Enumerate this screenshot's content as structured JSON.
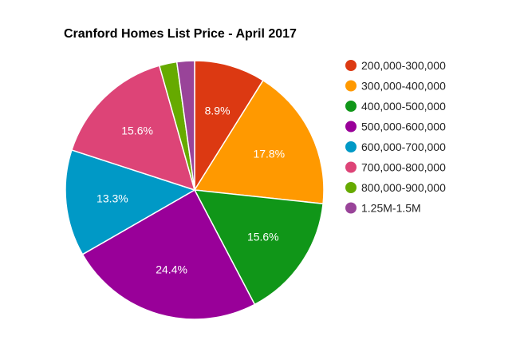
{
  "chart_data": {
    "type": "pie",
    "title": "Cranford Homes List Price - April 2017",
    "legend_position": "right",
    "slices": [
      {
        "label": "200,000-300,000",
        "value": 8.9,
        "display": "8.9%",
        "color": "#dc3912"
      },
      {
        "label": "300,000-400,000",
        "value": 17.8,
        "display": "17.8%",
        "color": "#ff9900"
      },
      {
        "label": "400,000-500,000",
        "value": 15.6,
        "display": "15.6%",
        "color": "#109618"
      },
      {
        "label": "500,000-600,000",
        "value": 24.4,
        "display": "24.4%",
        "color": "#990099"
      },
      {
        "label": "600,000-700,000",
        "value": 13.3,
        "display": "13.3%",
        "color": "#0099c6"
      },
      {
        "label": "700,000-800,000",
        "value": 15.6,
        "display": "15.6%",
        "color": "#dd4477"
      },
      {
        "label": "800,000-900,000",
        "value": 2.2,
        "display": "",
        "color": "#66aa00"
      },
      {
        "label": "1.25M-1.5M",
        "value": 2.2,
        "display": "",
        "color": "#994499"
      }
    ]
  }
}
